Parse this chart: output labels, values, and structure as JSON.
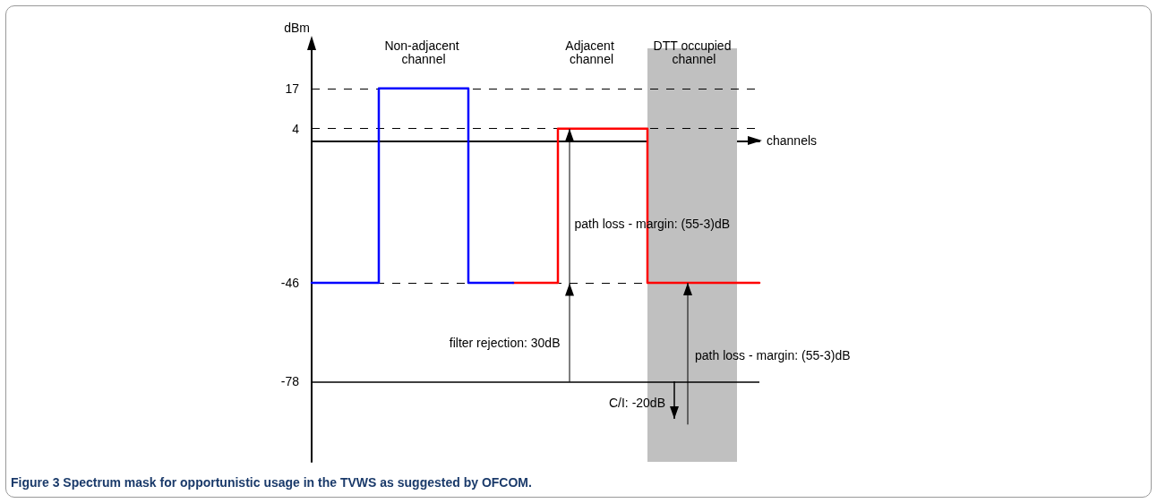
{
  "chart_data": {
    "type": "step",
    "xlabel": "channels",
    "ylabel": "dBm",
    "categories": [
      null,
      null,
      null,
      null,
      null,
      null,
      null,
      null,
      null,
      null,
      null,
      null,
      null,
      null,
      null,
      null,
      null,
      null,
      null,
      null,
      null
    ],
    "ylim": [
      -104,
      30
    ],
    "yticks": [
      17,
      4,
      -46,
      -78
    ],
    "grid": false,
    "marker": "none",
    "line_style": "solid",
    "series": [
      {
        "color": "#0000ff",
        "values": [
          -46,
          -46,
          -46,
          17,
          17,
          17,
          17,
          -46,
          -46,
          -46,
          null,
          null,
          null,
          null,
          null,
          null,
          null,
          null,
          null,
          null,
          null
        ]
      },
      {
        "color": "#ff0000",
        "values": [
          null,
          null,
          null,
          null,
          null,
          null,
          null,
          null,
          null,
          -46,
          -46,
          4,
          4,
          4,
          4,
          -46,
          -46,
          -46,
          -46,
          -46,
          -46
        ]
      }
    ],
    "ref_lines": [
      {
        "axis": "y",
        "value": 17,
        "line_style": "dashed",
        "color": "#000000"
      },
      {
        "axis": "y",
        "value": 4,
        "line_style": "dashed",
        "color": "#000000"
      },
      {
        "axis": "y",
        "value": -46,
        "line_style": "dashed",
        "color": "#000000"
      },
      {
        "axis": "y",
        "value": -78,
        "line_style": "solid",
        "color": "#000000"
      }
    ],
    "annotations": [
      "path loss - margin: (55-3)dB",
      "filter rejection: 30dB",
      "path loss - margin: (55-3)dB",
      "C/I: -20dB",
      "Non-adjacent channel",
      "Adjacent channel",
      "DTT occupied channel",
      "Figure 3 Spectrum mask for opportunistic usage in the TVWS as suggested by OFCOM."
    ]
  }
}
